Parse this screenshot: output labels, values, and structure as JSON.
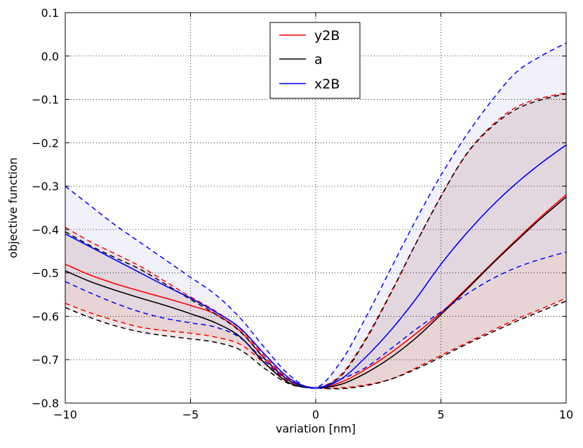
{
  "chart_data": {
    "type": "line",
    "title": "",
    "xlabel": "variation [nm]",
    "ylabel": "objective function",
    "xlim": [
      -10,
      10
    ],
    "ylim": [
      -0.8,
      0.1
    ],
    "xticks": [
      -10,
      -5,
      0,
      5,
      10
    ],
    "xtick_labels": [
      "−10",
      "−5",
      "0",
      "5",
      "10"
    ],
    "yticks": [
      -0.8,
      -0.7,
      -0.6,
      -0.5,
      -0.4,
      -0.3,
      -0.2,
      -0.1,
      0.0,
      0.1
    ],
    "ytick_labels": [
      "−0.8",
      "−0.7",
      "−0.6",
      "−0.5",
      "−0.4",
      "−0.3",
      "−0.2",
      "−0.1",
      "0.0",
      "0.1"
    ],
    "grid": true,
    "legend_position": "top-center",
    "legend": [
      "y2B",
      "a",
      "x2B"
    ],
    "x": [
      -10,
      -9,
      -8,
      -7,
      -6,
      -5,
      -4,
      -3,
      -2,
      -1,
      0,
      1,
      2,
      3,
      4,
      5,
      6,
      7,
      8,
      9,
      10
    ],
    "series": [
      {
        "name": "y2B",
        "color": "#ff0000",
        "band_color": "#dcbcbc",
        "values": [
          -0.48,
          -0.505,
          -0.525,
          -0.542,
          -0.558,
          -0.575,
          -0.595,
          -0.635,
          -0.7,
          -0.75,
          -0.765,
          -0.752,
          -0.722,
          -0.684,
          -0.64,
          -0.592,
          -0.537,
          -0.48,
          -0.424,
          -0.37,
          -0.32
        ],
        "upper": [
          -0.395,
          -0.428,
          -0.456,
          -0.485,
          -0.52,
          -0.555,
          -0.588,
          -0.63,
          -0.695,
          -0.748,
          -0.765,
          -0.735,
          -0.651,
          -0.545,
          -0.432,
          -0.323,
          -0.227,
          -0.162,
          -0.118,
          -0.097,
          -0.085
        ],
        "lower": [
          -0.57,
          -0.592,
          -0.61,
          -0.625,
          -0.633,
          -0.639,
          -0.648,
          -0.665,
          -0.71,
          -0.752,
          -0.765,
          -0.765,
          -0.758,
          -0.745,
          -0.719,
          -0.69,
          -0.662,
          -0.634,
          -0.607,
          -0.583,
          -0.558
        ]
      },
      {
        "name": "a",
        "color": "#000000",
        "band_color": "#dcbcbc",
        "values": [
          -0.495,
          -0.52,
          -0.54,
          -0.558,
          -0.575,
          -0.594,
          -0.615,
          -0.648,
          -0.71,
          -0.755,
          -0.765,
          -0.757,
          -0.731,
          -0.695,
          -0.65,
          -0.596,
          -0.54,
          -0.482,
          -0.427,
          -0.374,
          -0.325
        ],
        "upper": [
          -0.405,
          -0.437,
          -0.465,
          -0.492,
          -0.526,
          -0.561,
          -0.595,
          -0.636,
          -0.7,
          -0.75,
          -0.765,
          -0.738,
          -0.654,
          -0.547,
          -0.432,
          -0.324,
          -0.228,
          -0.165,
          -0.123,
          -0.101,
          -0.087
        ],
        "lower": [
          -0.58,
          -0.603,
          -0.622,
          -0.636,
          -0.645,
          -0.652,
          -0.66,
          -0.678,
          -0.722,
          -0.757,
          -0.765,
          -0.767,
          -0.76,
          -0.745,
          -0.722,
          -0.694,
          -0.665,
          -0.638,
          -0.612,
          -0.588,
          -0.565
        ]
      },
      {
        "name": "x2B",
        "color": "#0000ff",
        "band_color": "#dcdcf0",
        "values": [
          -0.41,
          -0.44,
          -0.47,
          -0.5,
          -0.53,
          -0.558,
          -0.59,
          -0.628,
          -0.69,
          -0.745,
          -0.765,
          -0.745,
          -0.694,
          -0.632,
          -0.56,
          -0.48,
          -0.41,
          -0.348,
          -0.294,
          -0.247,
          -0.205
        ],
        "upper": [
          -0.3,
          -0.345,
          -0.39,
          -0.43,
          -0.47,
          -0.51,
          -0.55,
          -0.605,
          -0.675,
          -0.738,
          -0.765,
          -0.705,
          -0.603,
          -0.49,
          -0.378,
          -0.275,
          -0.184,
          -0.105,
          -0.038,
          0.0,
          0.03
        ],
        "lower": [
          -0.52,
          -0.546,
          -0.57,
          -0.59,
          -0.605,
          -0.615,
          -0.625,
          -0.65,
          -0.705,
          -0.75,
          -0.765,
          -0.745,
          -0.718,
          -0.675,
          -0.63,
          -0.59,
          -0.55,
          -0.515,
          -0.488,
          -0.468,
          -0.452
        ]
      }
    ]
  }
}
